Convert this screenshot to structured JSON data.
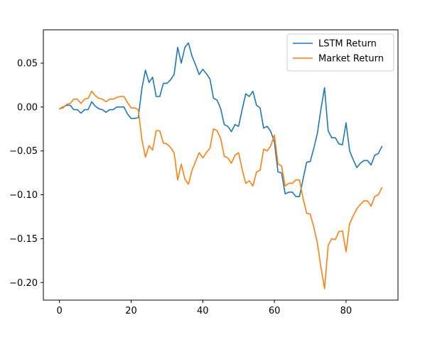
{
  "chart_data": {
    "type": "line",
    "title": "",
    "xlabel": "",
    "ylabel": "",
    "xlim": [
      -4.5,
      94.5
    ],
    "ylim": [
      -0.22,
      0.088
    ],
    "xticks": [
      0,
      20,
      40,
      60,
      80
    ],
    "yticks": [
      -0.2,
      -0.15,
      -0.1,
      -0.05,
      0.0,
      0.05
    ],
    "xtick_labels": [
      "0",
      "20",
      "40",
      "60",
      "80"
    ],
    "ytick_labels": [
      "−0.20",
      "−0.15",
      "−0.10",
      "−0.05",
      "0.00",
      "0.05"
    ],
    "grid": false,
    "legend_position": "top-right",
    "series": [
      {
        "name": "LSTM Return",
        "color": "#1f77b4",
        "x": [
          0,
          1,
          2,
          3,
          4,
          5,
          6,
          7,
          8,
          9,
          10,
          11,
          12,
          13,
          14,
          15,
          16,
          17,
          18,
          19,
          20,
          21,
          22,
          23,
          24,
          25,
          26,
          27,
          28,
          29,
          30,
          31,
          32,
          33,
          34,
          35,
          36,
          37,
          38,
          39,
          40,
          41,
          42,
          43,
          44,
          45,
          46,
          47,
          48,
          49,
          50,
          51,
          52,
          53,
          54,
          55,
          56,
          57,
          58,
          59,
          60,
          61,
          62,
          63,
          64,
          65,
          66,
          67,
          68,
          69,
          70,
          71,
          72,
          73,
          74,
          75,
          76,
          77,
          78,
          79,
          80,
          81,
          82,
          83,
          84,
          85,
          86,
          87,
          88,
          89,
          90
        ],
        "values": [
          -0.002,
          0.0,
          0.002,
          0.002,
          -0.003,
          -0.003,
          -0.007,
          -0.003,
          -0.003,
          0.006,
          0.001,
          -0.002,
          -0.003,
          -0.006,
          -0.003,
          -0.003,
          0.0,
          0.0,
          0.0,
          -0.008,
          -0.013,
          -0.013,
          -0.012,
          0.021,
          0.042,
          0.028,
          0.034,
          0.012,
          0.012,
          0.027,
          0.027,
          0.031,
          0.037,
          0.068,
          0.05,
          0.068,
          0.073,
          0.058,
          0.048,
          0.037,
          0.043,
          0.038,
          0.032,
          0.01,
          0.008,
          -0.002,
          -0.02,
          -0.022,
          -0.028,
          -0.02,
          -0.022,
          -0.003,
          0.015,
          0.012,
          0.018,
          0.002,
          -0.001,
          -0.024,
          -0.022,
          -0.028,
          -0.04,
          -0.074,
          -0.075,
          -0.099,
          -0.097,
          -0.097,
          -0.102,
          -0.102,
          -0.082,
          -0.063,
          -0.062,
          -0.047,
          -0.03,
          -0.002,
          0.022,
          -0.027,
          -0.035,
          -0.035,
          -0.042,
          -0.043,
          -0.018,
          -0.05,
          -0.06,
          -0.069,
          -0.064,
          -0.061,
          -0.061,
          -0.066,
          -0.055,
          -0.053,
          -0.045
        ]
      },
      {
        "name": "Market Return",
        "color": "#ff7f0e",
        "x": [
          0,
          1,
          2,
          3,
          4,
          5,
          6,
          7,
          8,
          9,
          10,
          11,
          12,
          13,
          14,
          15,
          16,
          17,
          18,
          19,
          20,
          21,
          22,
          23,
          24,
          25,
          26,
          27,
          28,
          29,
          30,
          31,
          32,
          33,
          34,
          35,
          36,
          37,
          38,
          39,
          40,
          41,
          42,
          43,
          44,
          45,
          46,
          47,
          48,
          49,
          50,
          51,
          52,
          53,
          54,
          55,
          56,
          57,
          58,
          59,
          60,
          61,
          62,
          63,
          64,
          65,
          66,
          67,
          68,
          69,
          70,
          71,
          72,
          73,
          74,
          75,
          76,
          77,
          78,
          79,
          80,
          81,
          82,
          83,
          84,
          85,
          86,
          87,
          88,
          89,
          90
        ],
        "values": [
          -0.002,
          -0.001,
          0.003,
          0.004,
          0.009,
          0.009,
          0.004,
          0.009,
          0.01,
          0.018,
          0.013,
          0.01,
          0.009,
          0.006,
          0.009,
          0.009,
          0.011,
          0.012,
          0.012,
          0.005,
          -0.001,
          -0.001,
          -0.003,
          -0.037,
          -0.057,
          -0.044,
          -0.049,
          -0.027,
          -0.027,
          -0.041,
          -0.042,
          -0.046,
          -0.052,
          -0.083,
          -0.065,
          -0.082,
          -0.088,
          -0.072,
          -0.062,
          -0.052,
          -0.058,
          -0.052,
          -0.047,
          -0.025,
          -0.027,
          -0.036,
          -0.056,
          -0.058,
          -0.064,
          -0.055,
          -0.052,
          -0.071,
          -0.087,
          -0.084,
          -0.09,
          -0.074,
          -0.072,
          -0.048,
          -0.05,
          -0.044,
          -0.032,
          -0.065,
          -0.067,
          -0.09,
          -0.087,
          -0.087,
          -0.083,
          -0.083,
          -0.104,
          -0.121,
          -0.122,
          -0.137,
          -0.155,
          -0.183,
          -0.207,
          -0.158,
          -0.15,
          -0.151,
          -0.142,
          -0.141,
          -0.165,
          -0.133,
          -0.124,
          -0.116,
          -0.111,
          -0.107,
          -0.107,
          -0.113,
          -0.102,
          -0.1,
          -0.092
        ]
      }
    ]
  }
}
